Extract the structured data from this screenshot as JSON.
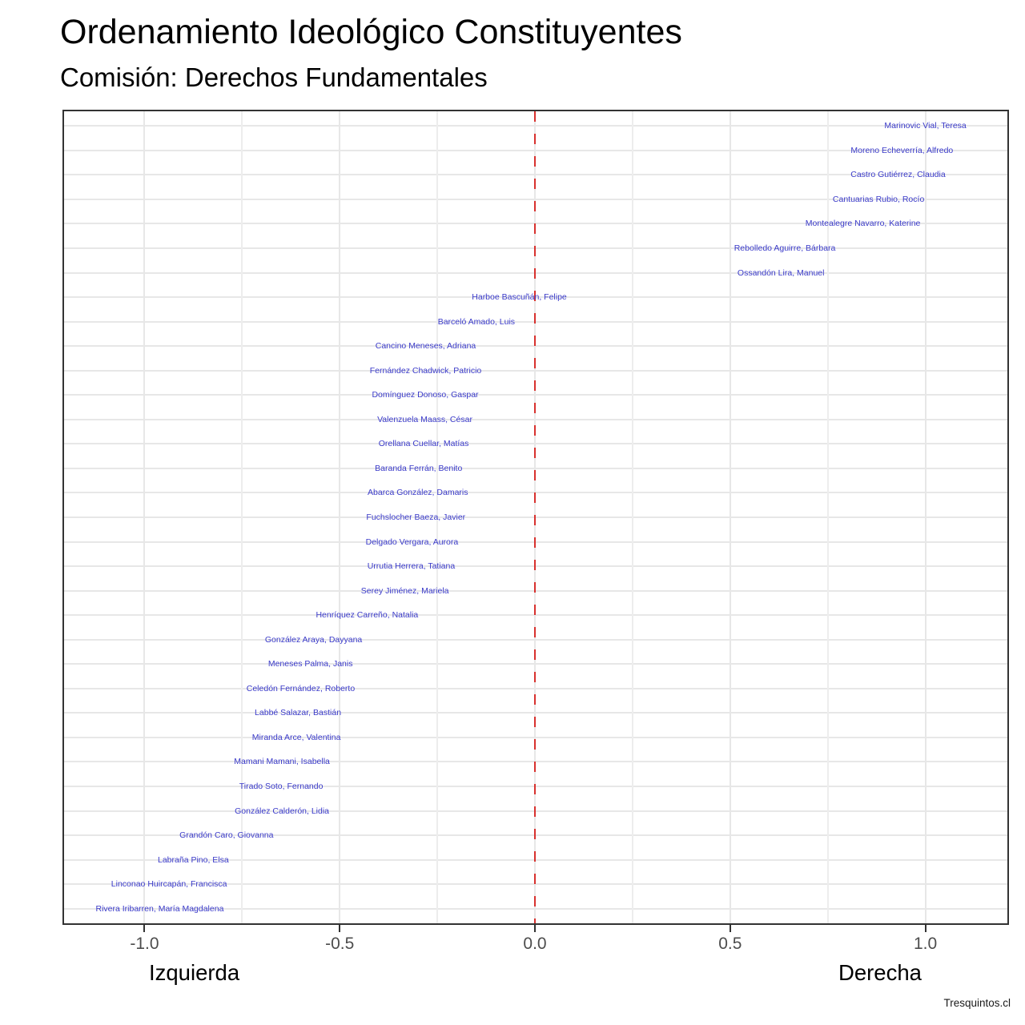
{
  "header": {
    "title": "Ordenamiento Ideológico Constituyentes",
    "subtitle": "Comisión: Derechos Fundamentales"
  },
  "axis": {
    "tick_labels": [
      "-1.0",
      "-0.5",
      "0.0",
      "0.5",
      "1.0"
    ],
    "tick_values": [
      -1.0,
      -0.5,
      0.0,
      0.5,
      1.0
    ],
    "left_label": "Izquierda",
    "right_label": "Derecha"
  },
  "footer": {
    "watermark": "Tresquintos.cl"
  },
  "chart_data": {
    "type": "scatter",
    "title": "Ordenamiento Ideológico Constituyentes",
    "subtitle": "Comisión: Derechos Fundamentales",
    "xlabel": "",
    "ylabel": "",
    "xlim": [
      -1.206,
      1.21
    ],
    "x_ticks": [
      -1.0,
      -0.5,
      0.0,
      0.5,
      1.0
    ],
    "x_minor_ticks": [
      -0.75,
      -0.25,
      0.25,
      0.75
    ],
    "reference_line_x": 0,
    "grid": true,
    "legend": "none",
    "colors": {
      "label_text": "#3a3ac9",
      "reference_line": "#d8312e",
      "gridline": "#e7e7e7",
      "panel_border": "#333333",
      "tick_text": "#4d4d4d"
    },
    "points": [
      {
        "name": "Marinovic Vial, Teresa",
        "x": 1.0
      },
      {
        "name": "Moreno Echeverría, Alfredo",
        "x": 0.94
      },
      {
        "name": "Castro Gutiérrez, Claudia",
        "x": 0.93
      },
      {
        "name": "Cantuarias Rubio, Rocío",
        "x": 0.88
      },
      {
        "name": "Montealegre Navarro, Katerine",
        "x": 0.84
      },
      {
        "name": "Rebolledo Aguirre, Bárbara",
        "x": 0.64
      },
      {
        "name": "Ossandón Lira, Manuel",
        "x": 0.63
      },
      {
        "name": "Harboe Bascuñán, Felipe",
        "x": -0.04
      },
      {
        "name": "Barceló Amado, Luis",
        "x": -0.15
      },
      {
        "name": "Cancino Meneses, Adriana",
        "x": -0.28
      },
      {
        "name": "Fernández Chadwick, Patricio",
        "x": -0.28
      },
      {
        "name": "Domínguez Donoso, Gaspar",
        "x": -0.281
      },
      {
        "name": "Valenzuela Maass, César",
        "x": -0.282
      },
      {
        "name": "Orellana Cuellar, Matías",
        "x": -0.285
      },
      {
        "name": "Baranda Ferrán, Benito",
        "x": -0.298
      },
      {
        "name": "Abarca González, Damaris",
        "x": -0.3
      },
      {
        "name": "Fuchslocher Baeza, Javier",
        "x": -0.305
      },
      {
        "name": "Delgado Vergara, Aurora",
        "x": -0.315
      },
      {
        "name": "Urrutia Herrera, Tatiana",
        "x": -0.317
      },
      {
        "name": "Serey Jiménez, Mariela",
        "x": -0.333
      },
      {
        "name": "Henríquez Carreño, Natalia",
        "x": -0.43
      },
      {
        "name": "González Araya, Dayyana",
        "x": -0.567
      },
      {
        "name": "Meneses Palma, Janis",
        "x": -0.575
      },
      {
        "name": "Celedón Fernández, Roberto",
        "x": -0.6
      },
      {
        "name": "Labbé Salazar, Bastián",
        "x": -0.607
      },
      {
        "name": "Miranda Arce, Valentina",
        "x": -0.611
      },
      {
        "name": "Mamani Mamani, Isabella",
        "x": -0.648
      },
      {
        "name": "Tirado Soto, Fernando",
        "x": -0.65
      },
      {
        "name": "González Calderón, Lidia",
        "x": -0.648
      },
      {
        "name": "Grandón Caro, Giovanna",
        "x": -0.79
      },
      {
        "name": "Labraña Pino, Elsa",
        "x": -0.875
      },
      {
        "name": "Linconao Huircapán, Francisca",
        "x": -0.937
      },
      {
        "name": "Rivera Iribarren, María Magdalena",
        "x": -0.961
      }
    ]
  }
}
